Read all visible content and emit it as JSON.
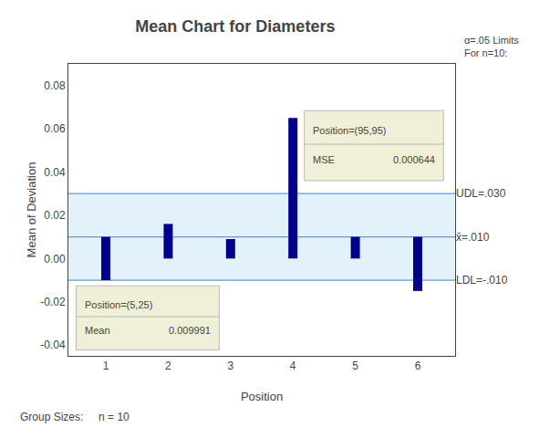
{
  "chart_data": {
    "type": "bar",
    "title": "Mean Chart for Diameters",
    "xlabel": "Position",
    "ylabel": "Mean of Deviation",
    "x": [
      1,
      2,
      3,
      4,
      5,
      6
    ],
    "values": [
      0.01,
      0.016,
      0.009,
      0.065,
      0.01,
      0.01
    ],
    "bases": [
      -0.01,
      0,
      0,
      0,
      0,
      -0.015
    ],
    "color": "#00008B",
    "xlim": [
      0.4,
      6.6
    ],
    "xticks": [
      1,
      2,
      3,
      4,
      5,
      6
    ],
    "ylim": [
      -0.045,
      0.09
    ],
    "yticks": [
      -0.04,
      -0.02,
      {
        "value": 0,
        "label": "0.00"
      },
      0.02,
      0.04,
      0.06,
      0.08
    ],
    "y2lim": [
      -0.045,
      0.09
    ],
    "y2ticks": [
      {
        "value": 0.03,
        "label": "UDL=.030"
      },
      {
        "value": 0.01,
        "label": "x̄=.010"
      },
      {
        "value": -0.01,
        "label": "LDL=-.010"
      }
    ],
    "reference_lines": {
      "values": [
        0.03,
        -0.01,
        0.01
      ],
      "color": "#6699cc"
    },
    "band": {
      "range": [
        -0.01,
        0.03
      ],
      "color": "#d0e8f8"
    },
    "note": "α=.05 Limits\nFor n=10:",
    "footer": "Group Sizes:     n = 10",
    "insets": [
      {
        "title": "Position=(95,95)",
        "rows": [
          [
            "MSE",
            "0.000644"
          ]
        ]
      },
      {
        "title": "Position=(5,25)",
        "rows": [
          [
            "Mean",
            "0.009991"
          ]
        ]
      }
    ],
    "inset_color": "#f0f0d8",
    "grid": false
  }
}
